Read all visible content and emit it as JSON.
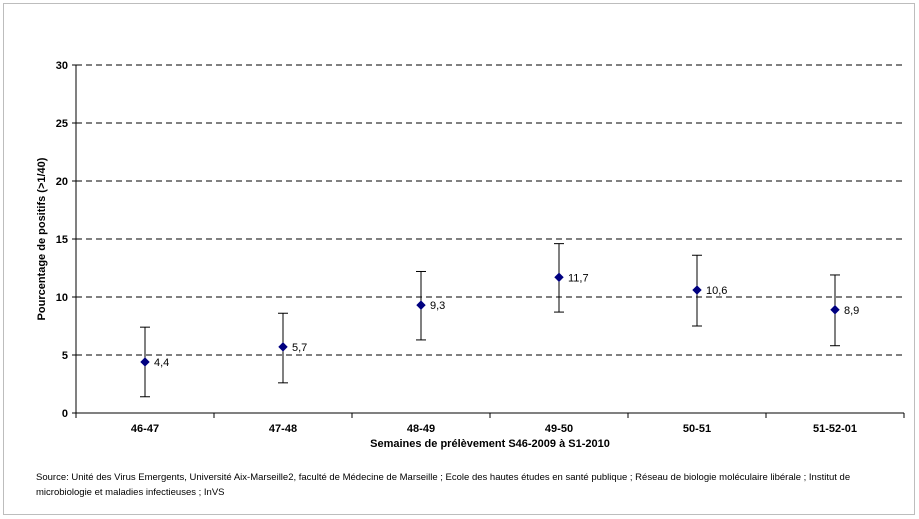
{
  "chart_data": {
    "type": "scatter",
    "categories": [
      "46-47",
      "47-48",
      "48-49",
      "49-50",
      "50-51",
      "51-52-01"
    ],
    "values": [
      4.4,
      5.7,
      9.3,
      11.7,
      10.6,
      8.9
    ],
    "value_labels": [
      "4,4",
      "5,7",
      "9,3",
      "11,7",
      "10,6",
      "8,9"
    ],
    "error_low": [
      1.4,
      2.6,
      6.3,
      8.7,
      7.5,
      5.8
    ],
    "error_high": [
      7.4,
      8.6,
      12.2,
      14.6,
      13.6,
      11.9
    ],
    "title": "",
    "xlabel": "Semaines de prélèvement S46-2009 à S1-2010",
    "ylabel": "Pourcentage de positifs (>1/40)",
    "ylim": [
      0,
      30
    ],
    "yticks": [
      0,
      5,
      10,
      15,
      20,
      25,
      30
    ],
    "grid": true,
    "marker_color": "#000080"
  },
  "source_text": "Source: Unité des Virus Emergents, Université Aix-Marseille2, faculté de Médecine de Marseille ; Ecole des hautes études en santé publique ; Réseau de biologie moléculaire libérale ; Institut de microbiologie et maladies infectieuses ; InVS"
}
